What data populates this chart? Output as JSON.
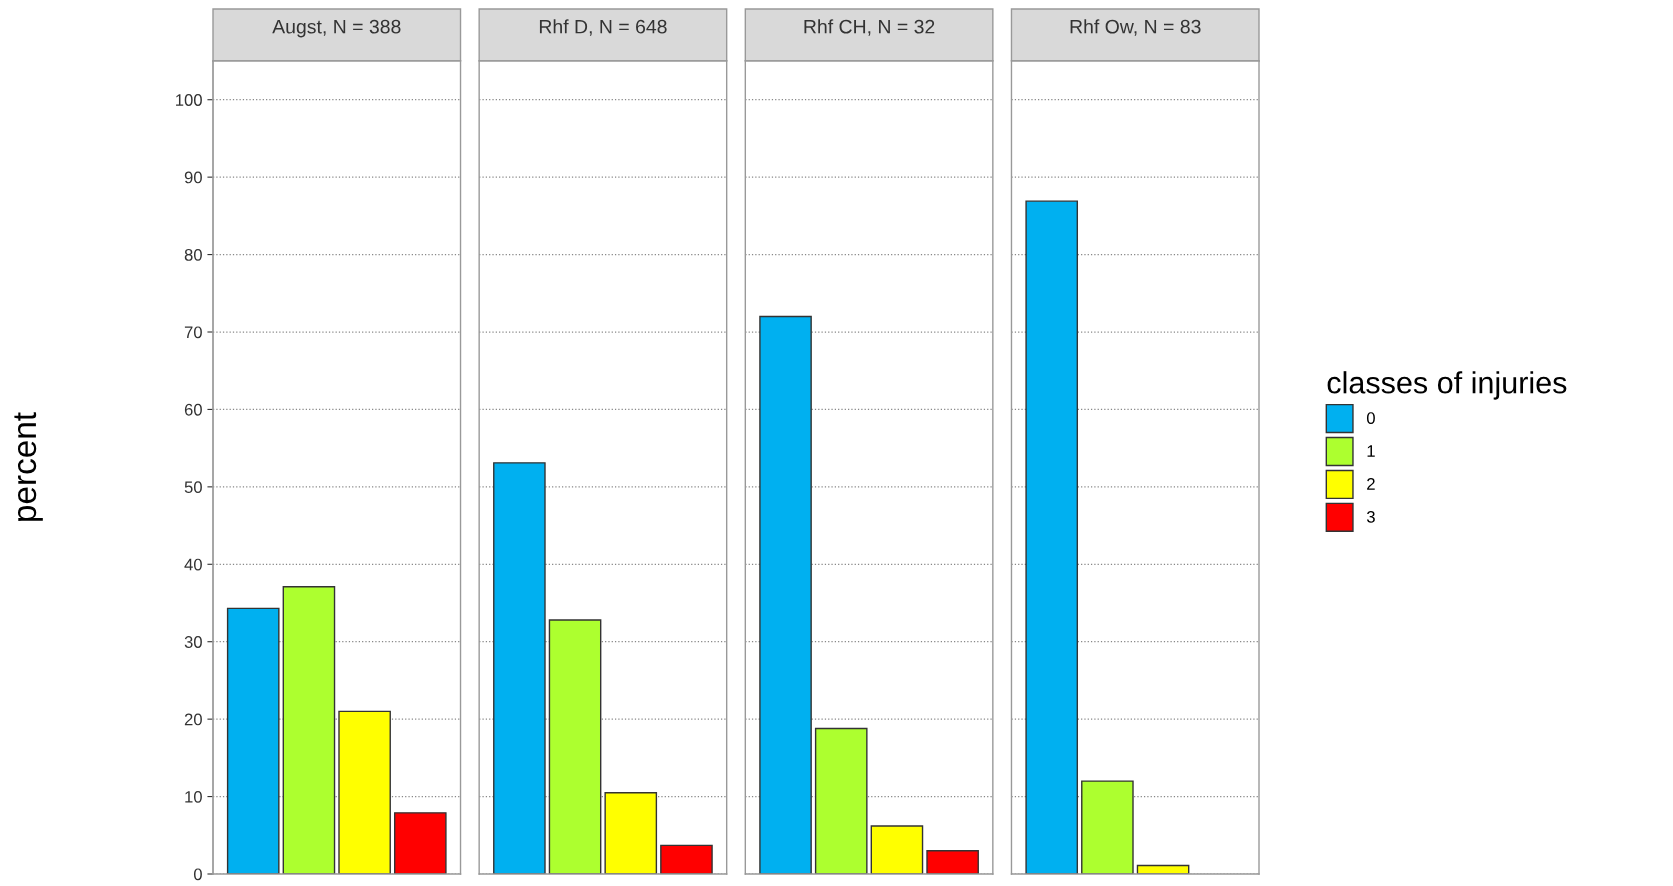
{
  "chart_data": {
    "type": "bar",
    "categories": [
      "Augst, N = 388",
      "Rhf D, N = 648",
      "Rhf CH, N = 32",
      "Rhf Ow, N = 83"
    ],
    "ylabel": "percent",
    "ylim": [
      0,
      105
    ],
    "yticks": [
      0,
      10,
      20,
      30,
      40,
      50,
      60,
      70,
      80,
      90,
      100
    ],
    "grid": "y",
    "legend": "right",
    "legend_title": "classes of injuries",
    "series": [
      {
        "name": "0",
        "color": "#00b0f0",
        "values": [
          34.3,
          53.1,
          72.0,
          86.9
        ]
      },
      {
        "name": "1",
        "color": "#adff2f",
        "values": [
          37.1,
          32.8,
          18.8,
          12.0
        ]
      },
      {
        "name": "2",
        "color": "#ffff00",
        "values": [
          21.0,
          10.5,
          6.2,
          1.1
        ]
      },
      {
        "name": "3",
        "color": "#ff0000",
        "values": [
          7.9,
          3.7,
          3.0,
          null
        ]
      }
    ]
  }
}
